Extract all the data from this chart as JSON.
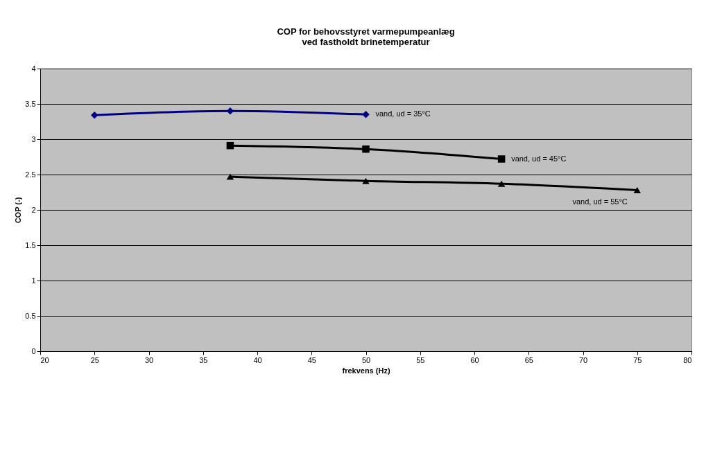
{
  "chart_data": {
    "type": "line",
    "title": [
      "COP for behovsstyret varmepumpeanlæg",
      "ved fastholdt brinetemperatur"
    ],
    "xlabel": "frekvens (Hz)",
    "ylabel": "COP (-)",
    "xlim": [
      20,
      80
    ],
    "xticks": [
      20,
      25,
      30,
      35,
      40,
      45,
      50,
      55,
      60,
      65,
      70,
      75,
      80
    ],
    "ylim": [
      0,
      4
    ],
    "yticks": [
      0,
      0.5,
      1,
      1.5,
      2,
      2.5,
      3,
      3.5,
      4
    ],
    "grid": "y",
    "line_style": "solid",
    "series": [
      {
        "name": "vand, ud = 35°C",
        "color": "#000080",
        "marker": "diamond",
        "x": [
          25,
          37.5,
          50
        ],
        "values": [
          3.34,
          3.4,
          3.35
        ]
      },
      {
        "name": "vand, ud = 45°C",
        "color": "#000000",
        "marker": "square",
        "x": [
          37.5,
          50,
          62.5
        ],
        "values": [
          2.91,
          2.86,
          2.72
        ]
      },
      {
        "name": "vand, ud = 55°C",
        "color": "#000000",
        "marker": "triangle",
        "x": [
          37.5,
          50,
          62.5,
          75
        ],
        "values": [
          2.47,
          2.41,
          2.37,
          2.28
        ]
      }
    ]
  }
}
